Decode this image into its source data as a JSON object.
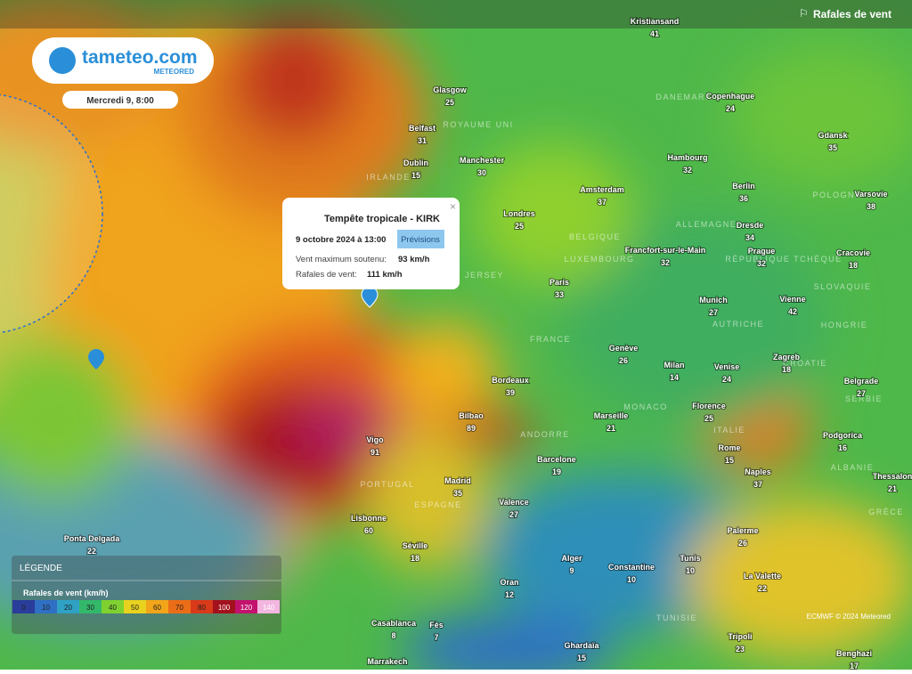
{
  "header": {
    "logo": "tameteo.com",
    "brand": "METEORED",
    "date": "Mercredi 9, 8:00",
    "layer": "Rafales de vent"
  },
  "popup": {
    "title": "Tempête tropicale - KIRK",
    "date": "9 octobre 2024 à 13:00",
    "badge": "Prévisions",
    "rows": [
      [
        "Vent maximum soutenu:",
        "93 km/h"
      ],
      [
        "Rafales de vent:",
        "111 km/h"
      ]
    ]
  },
  "cities": [
    [
      "Kristiansand",
      41
    ],
    [
      "Glasgow",
      25
    ],
    [
      "Copenhague",
      24
    ],
    [
      "Belfast",
      31
    ],
    [
      "Manchester",
      30
    ],
    [
      "Gdansk",
      35
    ],
    [
      "Dublin",
      15
    ],
    [
      "Hambourg",
      32
    ],
    [
      "Berlin",
      36
    ],
    [
      "Amsterdam",
      37
    ],
    [
      "Varsovie",
      38
    ],
    [
      "Londres",
      25
    ],
    [
      "Dresde",
      34
    ],
    [
      "Francfort-sur-le-Main",
      32
    ],
    [
      "Prague",
      32
    ],
    [
      "Cracovie",
      18
    ],
    [
      "Paris",
      33
    ],
    [
      "Munich",
      27
    ],
    [
      "Vienne",
      42
    ],
    [
      "Genève",
      26
    ],
    [
      "Zagreb",
      18
    ],
    [
      "Milan",
      14
    ],
    [
      "Venise",
      24
    ],
    [
      "Belgrade",
      27
    ],
    [
      "Bordeaux",
      39
    ],
    [
      "Bilbao",
      89
    ],
    [
      "Marseille",
      21
    ],
    [
      "Florence",
      25
    ],
    [
      "Vigo",
      91
    ],
    [
      "Podgorica",
      16
    ],
    [
      "Rome",
      15
    ],
    [
      "Barcelone",
      19
    ],
    [
      "Madrid",
      35
    ],
    [
      "Naples",
      37
    ],
    [
      "Thessalon",
      21
    ],
    [
      "Valence",
      27
    ],
    [
      "Lisbonne",
      60
    ],
    [
      "Palerme",
      26
    ],
    [
      "Ponta Delgada",
      22
    ],
    [
      "Séville",
      18
    ],
    [
      "Alger",
      9
    ],
    [
      "Constantine",
      10
    ],
    [
      "Tunis",
      10
    ],
    [
      "Oran",
      12
    ],
    [
      "La Valette",
      22
    ],
    [
      "Casablanca",
      8
    ],
    [
      "Fès",
      7
    ],
    [
      "Tripoli",
      23
    ],
    [
      "Ghardaïa",
      15
    ],
    [
      "Benghazi",
      17
    ],
    [
      "Marrakech"
    ]
  ],
  "countries": [
    "ROYAUME UNI",
    "IRLANDE",
    "DANEMARK",
    "POLOGNE",
    "ALLEMAGNE",
    "BELGIQUE",
    "LUXEMBOURG",
    "RÉPUBLIQUE TCHÈQUE",
    "SLOVAQUIE",
    "AUTRICHE",
    "HONGRIE",
    "FRANCE",
    "CROATIE",
    "SERBIE",
    "MONACO",
    "ANDORRE",
    "ITALIE",
    "PORTUGAL",
    "ESPAGNE",
    "ALBANIE",
    "GRÈCE",
    "TUNISIE",
    "JERSEY"
  ],
  "legend": {
    "title": "LÉGENDE",
    "subtitle": "Rafales de vent (km/h)",
    "scale": [
      {
        "label": 0,
        "color": "#2a3d9a"
      },
      {
        "label": 10,
        "color": "#2f6fc4"
      },
      {
        "label": 20,
        "color": "#2fa1c4"
      },
      {
        "label": 30,
        "color": "#33b86a"
      },
      {
        "label": 40,
        "color": "#7fd130"
      },
      {
        "label": 50,
        "color": "#e8d21f"
      },
      {
        "label": 60,
        "color": "#f3a51a"
      },
      {
        "label": 70,
        "color": "#ec6d17"
      },
      {
        "label": 80,
        "color": "#d83a1a"
      },
      {
        "label": 100,
        "color": "#a3111d"
      },
      {
        "label": 120,
        "color": "#c2126e"
      },
      {
        "label": 140,
        "color": "#f3b6e0"
      }
    ]
  },
  "credit": "ECMWF © 2024 Meteored"
}
